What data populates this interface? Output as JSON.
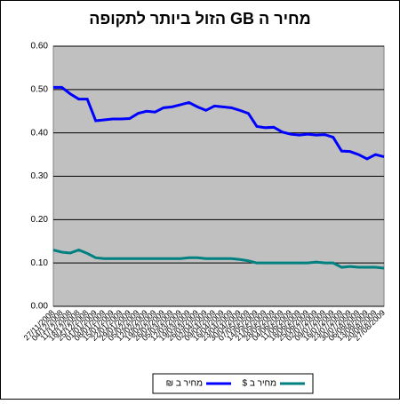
{
  "chart_data": {
    "type": "line",
    "title": "מחיר ה GB הזול ביותר לתקופה",
    "categories": [
      "27/11/2008",
      "04/12/2008",
      "11/12/2008",
      "18/12/2008",
      "25/12/2008",
      "01/01/2009",
      "08/01/2009",
      "15/01/2009",
      "22/01/2009",
      "29/01/2009",
      "05/02/2009",
      "12/02/2009",
      "19/02/2009",
      "26/02/2009",
      "05/03/2009",
      "12/03/2009",
      "19/03/2009",
      "26/03/2009",
      "02/04/2009",
      "09/04/2009",
      "16/04/2009",
      "23/04/2009",
      "30/04/2009",
      "07/05/2009",
      "14/05/2009",
      "21/05/2009",
      "28/05/2009",
      "04/06/2009",
      "11/06/2009",
      "18/06/2009",
      "25/06/2009",
      "02/07/2009",
      "09/07/2009",
      "16/07/2009",
      "23/07/2009",
      "30/07/2009",
      "06/08/2009",
      "13/08/2009",
      "20/08/2009",
      "27/08/2009"
    ],
    "series": [
      {
        "name": "מחיר ב $",
        "color": "#008080",
        "values": [
          0.13,
          0.125,
          0.123,
          0.13,
          0.122,
          0.112,
          0.11,
          0.11,
          0.11,
          0.11,
          0.11,
          0.11,
          0.11,
          0.11,
          0.11,
          0.11,
          0.112,
          0.112,
          0.11,
          0.11,
          0.11,
          0.11,
          0.108,
          0.105,
          0.1,
          0.1,
          0.1,
          0.1,
          0.1,
          0.1,
          0.1,
          0.102,
          0.1,
          0.1,
          0.09,
          0.092,
          0.09,
          0.09,
          0.09,
          0.088
        ]
      },
      {
        "name": "מחיר ב ₪",
        "color": "#0000ff",
        "values": [
          0.505,
          0.505,
          0.49,
          0.478,
          0.478,
          0.428,
          0.43,
          0.432,
          0.432,
          0.433,
          0.445,
          0.45,
          0.448,
          0.458,
          0.46,
          0.465,
          0.47,
          0.46,
          0.452,
          0.462,
          0.46,
          0.458,
          0.452,
          0.445,
          0.415,
          0.412,
          0.413,
          0.402,
          0.397,
          0.395,
          0.397,
          0.395,
          0.396,
          0.39,
          0.358,
          0.357,
          0.35,
          0.34,
          0.35,
          0.345
        ]
      }
    ],
    "ylim": [
      0,
      0.6
    ],
    "yticks": [
      {
        "value": 0,
        "label": "0.00"
      },
      {
        "value": 0.1,
        "label": "0.10"
      },
      {
        "value": 0.2,
        "label": "0.20"
      },
      {
        "value": 0.3,
        "label": "0.30"
      },
      {
        "value": 0.4,
        "label": "0.40"
      },
      {
        "value": 0.5,
        "label": "0.50"
      },
      {
        "value": 0.6,
        "label": "0.60"
      }
    ],
    "grid": true,
    "legend": "bottom"
  }
}
